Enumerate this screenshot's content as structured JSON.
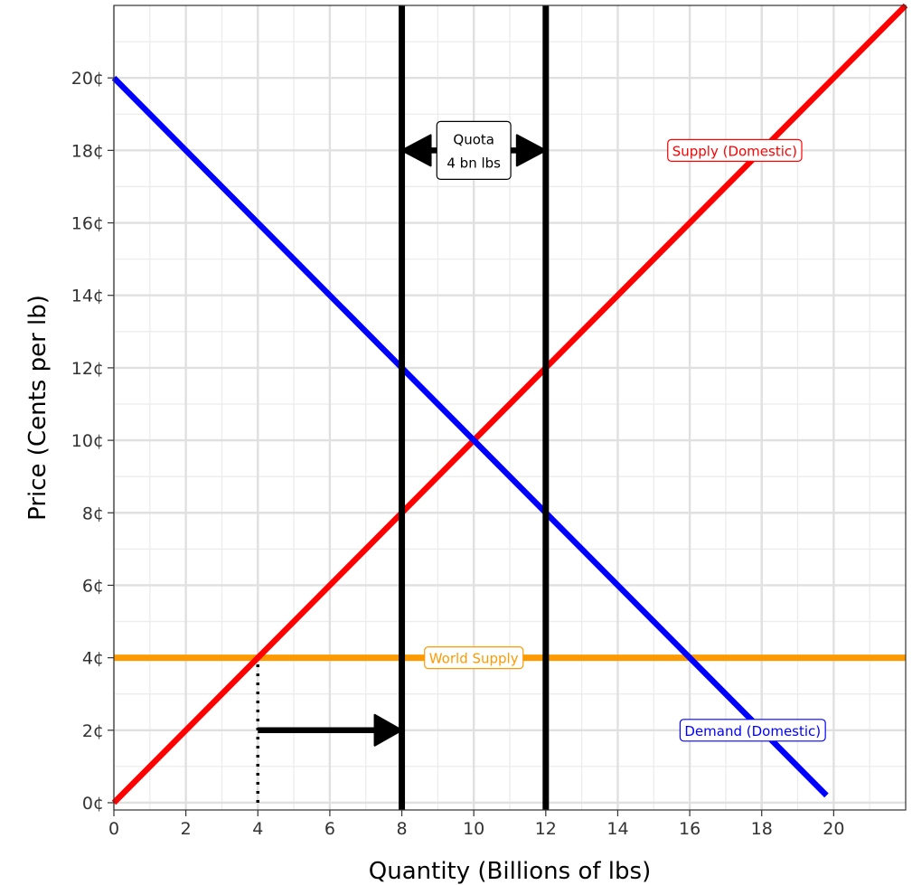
{
  "chart_data": {
    "type": "line",
    "xlabel": "Quantity (Billions of lbs)",
    "ylabel": "Price (Cents per lb)",
    "xlim": [
      0,
      22
    ],
    "ylim": [
      -0.2,
      22
    ],
    "x_ticks": [
      0,
      2,
      4,
      6,
      8,
      10,
      12,
      14,
      16,
      18,
      20
    ],
    "x_tick_labels": [
      "0",
      "2",
      "4",
      "6",
      "8",
      "10",
      "12",
      "14",
      "16",
      "18",
      "20"
    ],
    "y_ticks": [
      0,
      2,
      4,
      6,
      8,
      10,
      12,
      14,
      16,
      18,
      20
    ],
    "y_tick_labels": [
      "0¢",
      "2¢",
      "4¢",
      "6¢",
      "8¢",
      "10¢",
      "12¢",
      "14¢",
      "16¢",
      "18¢",
      "20¢"
    ],
    "grid": true,
    "series": [
      {
        "name": "Supply (Domestic)",
        "color": "#ff0000",
        "x": [
          0,
          22
        ],
        "y": [
          0,
          22
        ]
      },
      {
        "name": "Demand (Domestic)",
        "color": "#0000ff",
        "x": [
          0,
          19.8
        ],
        "y": [
          20,
          0.2
        ]
      },
      {
        "name": "World Supply",
        "color": "#ff9900",
        "x": [
          0,
          22
        ],
        "y": [
          4,
          4
        ]
      }
    ],
    "vertical_lines": [
      {
        "x": 8,
        "color": "#000000"
      },
      {
        "x": 12,
        "color": "#000000"
      }
    ],
    "dotted_line": {
      "x": 4,
      "y": [
        0,
        4
      ]
    },
    "shift_arrow": {
      "from": [
        4,
        2
      ],
      "to": [
        8,
        2
      ]
    },
    "quota_arrow": {
      "from": [
        8,
        18
      ],
      "to": [
        12,
        18
      ]
    },
    "annotations": [
      {
        "text": "Supply (Domestic)",
        "x": 17.25,
        "y": 18,
        "color": "#ff0000"
      },
      {
        "text": "Demand (Domestic)",
        "x": 17.75,
        "y": 2,
        "color": "#0000ff"
      },
      {
        "text": "World Supply",
        "x": 10,
        "y": 4,
        "color": "#ff9900"
      }
    ],
    "quota_label": {
      "lines": [
        "Quota",
        "4 bn lbs"
      ],
      "x": 10,
      "y": 18
    }
  }
}
